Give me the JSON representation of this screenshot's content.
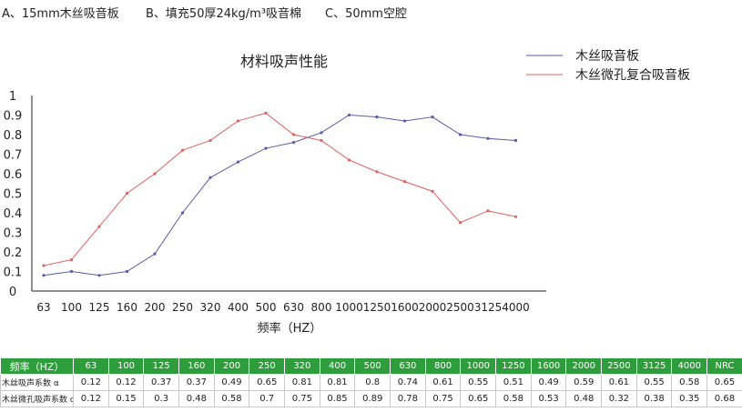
{
  "layers": [
    "A、15mm木丝吸音板",
    "B、填充50厚24kg/m³吸音棉",
    "C、50mm空腔"
  ],
  "colors": {
    "series_1": "#5a5aa8",
    "series_2": "#e06060",
    "table_header_bg": "#2e9e3c"
  },
  "chart_data": {
    "type": "line",
    "title": "材料吸声性能",
    "xlabel": "频率（HZ）",
    "ylabel": "",
    "categories": [
      "63",
      "100",
      "125",
      "160",
      "200",
      "250",
      "320",
      "400",
      "500",
      "630",
      "800",
      "1000",
      "1250",
      "1600",
      "2000",
      "2500",
      "3125",
      "4000"
    ],
    "yticks": [
      "0",
      "0.1",
      "0.2",
      "0.3",
      "0.4",
      "0.5",
      "0.6",
      "0.7",
      "0.8",
      "0.9",
      "1"
    ],
    "ylim": [
      0,
      1
    ],
    "legend_position": "top-right",
    "grid": false,
    "series": [
      {
        "name": "木丝吸音板",
        "color": "#5a5aa8",
        "values": [
          0.08,
          0.1,
          0.08,
          0.1,
          0.19,
          0.4,
          0.58,
          0.66,
          0.73,
          0.76,
          0.81,
          0.9,
          0.89,
          0.87,
          0.89,
          0.8,
          0.78,
          0.77
        ]
      },
      {
        "name": "木丝微孔复合吸音板",
        "color": "#e06060",
        "values": [
          0.13,
          0.16,
          0.33,
          0.5,
          0.6,
          0.72,
          0.77,
          0.87,
          0.91,
          0.8,
          0.77,
          0.67,
          0.61,
          0.56,
          0.51,
          0.35,
          0.41,
          0.38
        ]
      }
    ]
  },
  "table": {
    "header": [
      "频率（HZ）",
      "63",
      "100",
      "125",
      "160",
      "200",
      "250",
      "320",
      "400",
      "500",
      "630",
      "800",
      "1000",
      "1250",
      "1600",
      "2000",
      "2500",
      "3125",
      "4000",
      "NRC"
    ],
    "rows": [
      [
        "木丝吸声系数 α",
        "0.12",
        "0.12",
        "0.37",
        "0.37",
        "0.49",
        "0.65",
        "0.81",
        "0.81",
        "0.8",
        "0.74",
        "0.61",
        "0.55",
        "0.51",
        "0.49",
        "0.59",
        "0.61",
        "0.55",
        "0.58",
        "0.65"
      ],
      [
        "木丝微孔吸声系数 α",
        "0.12",
        "0.15",
        "0.3",
        "0.48",
        "0.58",
        "0.7",
        "0.75",
        "0.85",
        "0.89",
        "0.78",
        "0.75",
        "0.65",
        "0.58",
        "0.53",
        "0.48",
        "0.32",
        "0.38",
        "0.35",
        "0.68"
      ]
    ]
  }
}
